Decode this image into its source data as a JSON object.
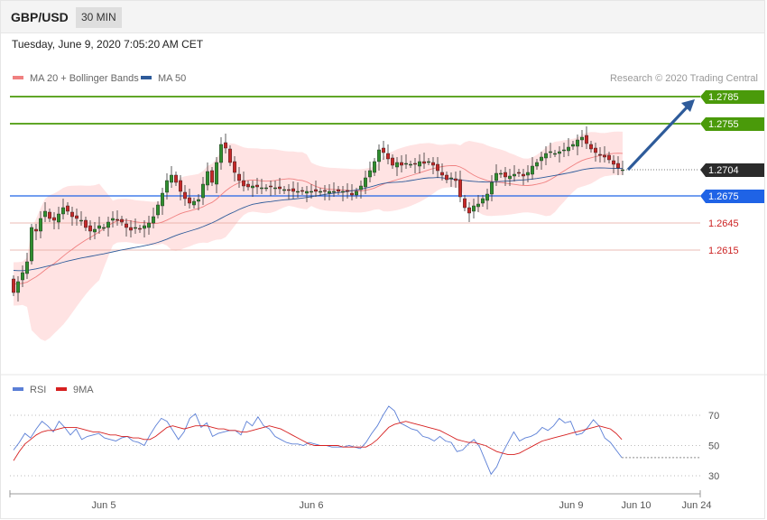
{
  "header": {
    "symbol": "GBP/USD",
    "timeframe": "30 MIN",
    "datetime": "Tuesday, June 9, 2020 7:05:20 AM CET",
    "credit": "Research © 2020 Trading Central"
  },
  "colors": {
    "ma20": "#f08080",
    "ma50": "#2e5b9a",
    "bollinger_fill": "#ffe3e3",
    "candle_up": "#2f8f2f",
    "candle_down": "#c62828",
    "resistance": "#4a9a0a",
    "pivot": "#1f63e6",
    "support": "#cc2222",
    "last_price": "#2b2b2b",
    "rsi": "#5b7fd6",
    "rsi_ma": "#d62020",
    "arrow": "#2e5b9a"
  },
  "chart_data": [
    {
      "type": "candlestick",
      "legend": [
        {
          "name": "MA 20 + Bollinger Bands",
          "color": "#f08080"
        },
        {
          "name": "MA 50",
          "color": "#2e5b9a"
        }
      ],
      "x_ticks": [
        "Jun 5",
        "Jun 6",
        "Jun 9",
        "Jun 10",
        "Jun 24"
      ],
      "price_levels": [
        {
          "label": "1.2785",
          "kind": "resistance"
        },
        {
          "label": "1.2755",
          "kind": "resistance"
        },
        {
          "label": "1.2704",
          "kind": "last"
        },
        {
          "label": "1.2675",
          "kind": "pivot"
        },
        {
          "label": "1.2645",
          "kind": "support"
        },
        {
          "label": "1.2615",
          "kind": "support"
        }
      ],
      "projection": {
        "from": 1.2704,
        "to": 1.2785
      },
      "series": [
        {
          "name": "GBP/USD",
          "close": [
            1.2568,
            1.258,
            1.259,
            1.2602,
            1.264,
            1.2636,
            1.265,
            1.2658,
            1.265,
            1.2648,
            1.2655,
            1.2662,
            1.2658,
            1.2652,
            1.265,
            1.2648,
            1.264,
            1.2636,
            1.2638,
            1.2642,
            1.264,
            1.2646,
            1.265,
            1.2648,
            1.2646,
            1.264,
            1.2637,
            1.264,
            1.2638,
            1.2642,
            1.2645,
            1.2652,
            1.2665,
            1.2678,
            1.2692,
            1.2698,
            1.269,
            1.268,
            1.2672,
            1.2667,
            1.2669,
            1.2671,
            1.2688,
            1.2702,
            1.269,
            1.2712,
            1.2732,
            1.2728,
            1.2712,
            1.2701,
            1.2692,
            1.2686,
            1.2685,
            1.2686,
            1.2685,
            1.2684,
            1.2684,
            1.2685,
            1.2684,
            1.2683,
            1.2682,
            1.2681,
            1.268,
            1.268,
            1.268,
            1.268,
            1.268,
            1.268,
            1.268,
            1.268,
            1.268,
            1.268,
            1.268,
            1.268,
            1.268,
            1.2676,
            1.268,
            1.2686,
            1.2695,
            1.2703,
            1.2713,
            1.2726,
            1.2723,
            1.2716,
            1.2709,
            1.2712,
            1.2709,
            1.2711,
            1.271,
            1.271,
            1.2713,
            1.2711,
            1.2713,
            1.2709,
            1.2703,
            1.2698,
            1.2693,
            1.2695,
            1.2692,
            1.2674,
            1.2662,
            1.2656,
            1.2664,
            1.2666,
            1.2672,
            1.2677,
            1.269,
            1.27,
            1.27,
            1.2696,
            1.2697,
            1.2699,
            1.27,
            1.2697,
            1.2701,
            1.2708,
            1.2712,
            1.2718,
            1.2722,
            1.2724,
            1.2722,
            1.2724,
            1.2726,
            1.2729,
            1.2732,
            1.2737,
            1.274,
            1.2733,
            1.2727,
            1.2723,
            1.272,
            1.2718,
            1.2715,
            1.271,
            1.2706,
            1.2704
          ],
          "ma20_start": 1.2578,
          "ma50_start": 1.2593
        },
        {
          "name": "MA 20"
        },
        {
          "name": "MA 50"
        }
      ]
    },
    {
      "type": "line",
      "legend": [
        {
          "name": "RSI",
          "color": "#5b7fd6"
        },
        {
          "name": "9MA",
          "color": "#d62020"
        }
      ],
      "y_ticks": [
        70,
        50,
        30
      ],
      "ylim": [
        22,
        78
      ],
      "series": [
        {
          "name": "RSI",
          "values": [
            47,
            52,
            58,
            55,
            61,
            66,
            63,
            59,
            66,
            62,
            57,
            61,
            54,
            56,
            57,
            58,
            55,
            54,
            53,
            55,
            56,
            53,
            52,
            50,
            57,
            63,
            68,
            66,
            60,
            54,
            59,
            68,
            71,
            62,
            65,
            56,
            58,
            59,
            60,
            60,
            57,
            66,
            63,
            69,
            63,
            61,
            56,
            54,
            52,
            51,
            51,
            50,
            52,
            51,
            50,
            50,
            49,
            49,
            49,
            50,
            49,
            48,
            52,
            58,
            63,
            70,
            76,
            73,
            65,
            63,
            61,
            60,
            56,
            55,
            53,
            56,
            53,
            52,
            46,
            47,
            51,
            54,
            49,
            40,
            31,
            36,
            45,
            52,
            59,
            53,
            55,
            56,
            58,
            62,
            60,
            63,
            68,
            65,
            66,
            57,
            58,
            62,
            67,
            63,
            55,
            52,
            47,
            42
          ]
        },
        {
          "name": "9MA",
          "values": [
            40,
            46,
            51,
            54,
            57,
            59,
            60,
            60,
            61,
            62,
            62,
            62,
            61,
            60,
            59,
            59,
            58,
            57,
            57,
            56,
            56,
            55,
            55,
            54,
            54,
            56,
            59,
            62,
            63,
            62,
            61,
            62,
            63,
            63,
            63,
            62,
            61,
            61,
            60,
            60,
            59,
            59,
            60,
            61,
            62,
            63,
            62,
            61,
            59,
            57,
            55,
            53,
            51,
            50,
            50,
            50,
            50,
            50,
            49,
            49,
            49,
            49,
            49,
            51,
            54,
            58,
            62,
            64,
            65,
            66,
            65,
            64,
            63,
            62,
            61,
            60,
            58,
            56,
            54,
            53,
            52,
            52,
            51,
            50,
            48,
            46,
            45,
            44,
            44,
            45,
            47,
            49,
            51,
            53,
            54,
            55,
            56,
            57,
            58,
            59,
            60,
            61,
            62,
            63,
            62,
            61,
            58,
            54
          ]
        }
      ]
    }
  ]
}
